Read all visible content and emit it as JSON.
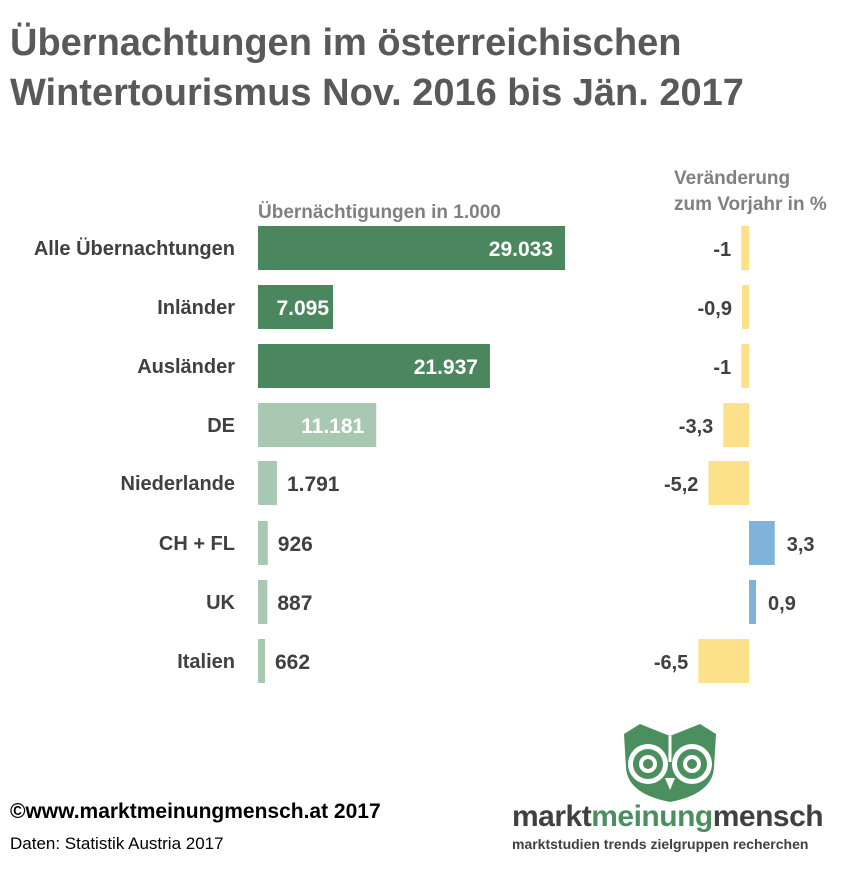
{
  "title": "Übernachtungen im österreichischen Wintertourismus Nov. 2016 bis Jän. 2017",
  "footer": {
    "copyright": "©www.marktmeinungmensch.at 2017",
    "source": "Daten: Statistik Austria 2017"
  },
  "logo": {
    "word_1": "markt",
    "word_2": "meinung",
    "word_3": "mensch",
    "tagline": "marktstudien trends zielgruppen recherchen"
  },
  "colors": {
    "dark_green": "#4b875e",
    "light_green": "#a9c8b2",
    "yellow": "#fde08a",
    "blue": "#7fb3d9",
    "text": "#404040",
    "title": "#595959"
  },
  "chart_data": [
    {
      "type": "bar",
      "orientation": "horizontal",
      "header": "Übernächtigungen  in 1.000",
      "categories": [
        "Alle Übernachtungen",
        "Inländer",
        "Ausländer",
        "DE",
        "Niederlande",
        "CH + FL",
        "UK",
        "Italien"
      ],
      "values": [
        29033,
        7095,
        21937,
        11181,
        1791,
        926,
        887,
        662
      ],
      "labels": [
        "29.033",
        "7.095",
        "21.937",
        "11.181",
        "1.791",
        "926",
        "887",
        "662"
      ],
      "xlim": [
        0,
        29033
      ],
      "grid": false
    },
    {
      "type": "bar",
      "orientation": "horizontal",
      "header_lines": [
        "Veränderung",
        "zum Vorjahr in %"
      ],
      "categories": [
        "Alle Übernachtungen",
        "Inländer",
        "Ausländer",
        "DE",
        "Niederlande",
        "CH + FL",
        "UK",
        "Italien"
      ],
      "values": [
        -1,
        -0.9,
        -1,
        -3.3,
        -5.2,
        3.3,
        0.9,
        -6.5
      ],
      "labels": [
        "-1",
        "-0,9",
        "-1",
        "-3,3",
        "-5,2",
        "3,3",
        "0,9",
        "-6,5"
      ],
      "grid": false
    }
  ]
}
